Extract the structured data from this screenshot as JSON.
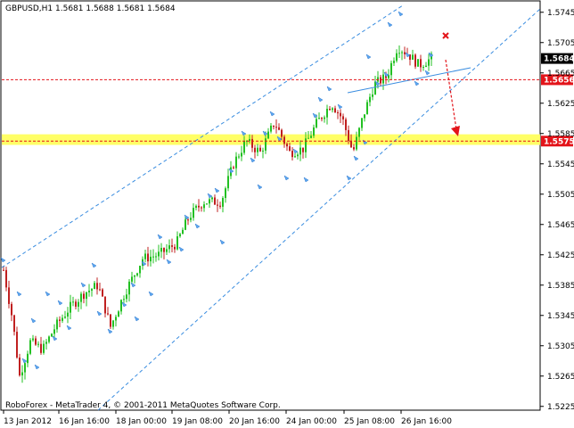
{
  "window": {
    "header": "GBPUSD,H1  1.5681 1.5688 1.5681 1.5684",
    "footer": "RoboForex - MetaTrader 4, © 2001-2011 MetaQuotes Software Corp."
  },
  "chart_data": {
    "type": "candlestick",
    "symbol": "GBPUSD",
    "timeframe": "H1",
    "ylim": [
      1.522,
      1.576
    ],
    "y_ticks": [
      "1.5745",
      "1.5705",
      "1.5665",
      "1.5625",
      "1.5585",
      "1.5545",
      "1.5505",
      "1.5465",
      "1.5425",
      "1.5385",
      "1.5345",
      "1.5305",
      "1.5265",
      "1.5225"
    ],
    "x_ticks": [
      "13 Jan 2012",
      "16 Jan 16:00",
      "18 Jan 00:00",
      "19 Jan 08:00",
      "20 Jan 16:00",
      "24 Jan 00:00",
      "25 Jan 08:00",
      "26 Jan 16:00"
    ],
    "current_price": "1.5684",
    "levels": [
      {
        "value": "1.5656",
        "color": "#e3141a"
      },
      {
        "value": "1.5575",
        "color": "#e3141a"
      }
    ],
    "target_zone": {
      "from": 1.557,
      "to": 1.5584,
      "color": "#ffff66"
    },
    "colors": {
      "bull": "#22c022",
      "bear": "#c02020",
      "channel": "#3a8de0",
      "arrow": "#e3141a",
      "fractal": "#60a8f0",
      "grid": "#c8c8c8"
    }
  }
}
